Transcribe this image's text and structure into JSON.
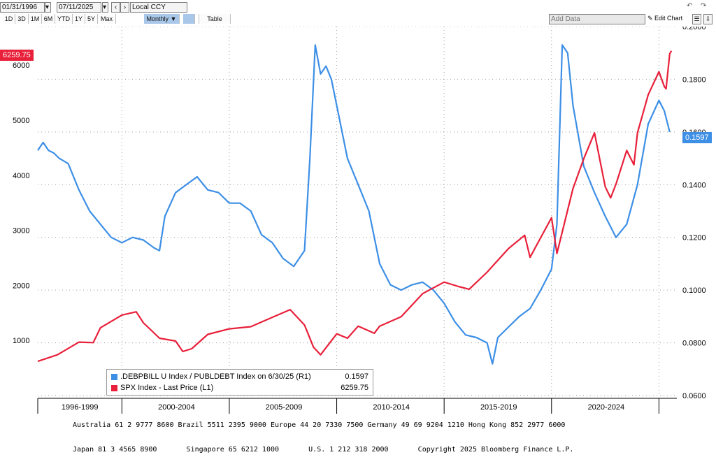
{
  "toolbar": {
    "start_date": "01/31/1996",
    "end_date": "07/11/2025",
    "currency": "Local CCY",
    "period_buttons": [
      "1D",
      "3D",
      "1M",
      "6M",
      "YTD",
      "1Y",
      "5Y",
      "Max"
    ],
    "frequency": "Monthly ▼",
    "table_label": "Table",
    "add_data_placeholder": "Add Data",
    "edit_chart_label": "Edit Chart"
  },
  "chart_data": {
    "type": "line",
    "x_start": "1996-01",
    "x_end": "2025-06",
    "x_period_labels": [
      "1996-1999",
      "2000-2004",
      "2005-2009",
      "2010-2014",
      "2015-2019",
      "2020-2024"
    ],
    "left_axis": {
      "ticks": [
        "1000",
        "2000",
        "3000",
        "4000",
        "5000",
        "6000"
      ],
      "range": [
        0,
        6700
      ]
    },
    "right_axis": {
      "ticks": [
        "0.0600",
        "0.0800",
        "0.1000",
        "0.1200",
        "0.1400",
        "0.1600",
        "0.1800",
        "0.2000"
      ],
      "range": [
        0.06,
        0.2
      ]
    },
    "series": [
      {
        "name": ".DEBPBILL U Index / PUBLDEBT Index on 6/30/25 (R1)",
        "last_value": "0.1597",
        "color": "#3d8fe6",
        "axis": "right",
        "points": [
          [
            "1996-01",
            0.153
          ],
          [
            "1996-04",
            0.156
          ],
          [
            "1996-07",
            0.153
          ],
          [
            "1996-10",
            0.152
          ],
          [
            "1997-01",
            0.15
          ],
          [
            "1997-06",
            0.148
          ],
          [
            "1997-12",
            0.138
          ],
          [
            "1998-06",
            0.13
          ],
          [
            "1998-12",
            0.125
          ],
          [
            "1999-06",
            0.12
          ],
          [
            "1999-12",
            0.118
          ],
          [
            "2000-06",
            0.12
          ],
          [
            "2000-12",
            0.119
          ],
          [
            "2001-06",
            0.116
          ],
          [
            "2001-09",
            0.115
          ],
          [
            "2001-12",
            0.128
          ],
          [
            "2002-06",
            0.137
          ],
          [
            "2002-12",
            0.14
          ],
          [
            "2003-06",
            0.143
          ],
          [
            "2003-12",
            0.138
          ],
          [
            "2004-06",
            0.137
          ],
          [
            "2004-12",
            0.133
          ],
          [
            "2005-06",
            0.133
          ],
          [
            "2005-12",
            0.13
          ],
          [
            "2006-06",
            0.121
          ],
          [
            "2006-12",
            0.118
          ],
          [
            "2007-06",
            0.112
          ],
          [
            "2007-12",
            0.109
          ],
          [
            "2008-06",
            0.115
          ],
          [
            "2008-09",
            0.15
          ],
          [
            "2008-12",
            0.193
          ],
          [
            "2009-03",
            0.182
          ],
          [
            "2009-06",
            0.185
          ],
          [
            "2009-09",
            0.18
          ],
          [
            "2009-12",
            0.17
          ],
          [
            "2010-06",
            0.15
          ],
          [
            "2010-12",
            0.14
          ],
          [
            "2011-06",
            0.13
          ],
          [
            "2011-12",
            0.11
          ],
          [
            "2012-06",
            0.102
          ],
          [
            "2012-12",
            0.1
          ],
          [
            "2013-06",
            0.102
          ],
          [
            "2013-12",
            0.103
          ],
          [
            "2014-06",
            0.1
          ],
          [
            "2014-12",
            0.095
          ],
          [
            "2015-06",
            0.088
          ],
          [
            "2015-12",
            0.083
          ],
          [
            "2016-06",
            0.082
          ],
          [
            "2016-12",
            0.08
          ],
          [
            "2017-03",
            0.072
          ],
          [
            "2017-06",
            0.082
          ],
          [
            "2017-12",
            0.086
          ],
          [
            "2018-06",
            0.09
          ],
          [
            "2018-12",
            0.093
          ],
          [
            "2019-06",
            0.1
          ],
          [
            "2019-12",
            0.108
          ],
          [
            "2020-03",
            0.125
          ],
          [
            "2020-06",
            0.193
          ],
          [
            "2020-09",
            0.19
          ],
          [
            "2020-12",
            0.17
          ],
          [
            "2021-06",
            0.147
          ],
          [
            "2021-12",
            0.137
          ],
          [
            "2022-06",
            0.128
          ],
          [
            "2022-12",
            0.12
          ],
          [
            "2023-06",
            0.125
          ],
          [
            "2023-12",
            0.14
          ],
          [
            "2024-06",
            0.163
          ],
          [
            "2024-12",
            0.172
          ],
          [
            "2025-03",
            0.168
          ],
          [
            "2025-06",
            0.16
          ]
        ]
      },
      {
        "name": "SPX Index - Last Price (L1)",
        "last_value": "6259.75",
        "color": "#e8203a",
        "axis": "left",
        "points": [
          [
            "1996-01",
            620
          ],
          [
            "1996-12",
            740
          ],
          [
            "1997-12",
            970
          ],
          [
            "1998-08",
            960
          ],
          [
            "1998-12",
            1230
          ],
          [
            "1999-12",
            1460
          ],
          [
            "2000-08",
            1520
          ],
          [
            "2000-12",
            1320
          ],
          [
            "2001-09",
            1040
          ],
          [
            "2002-06",
            990
          ],
          [
            "2002-10",
            800
          ],
          [
            "2003-03",
            850
          ],
          [
            "2003-12",
            1110
          ],
          [
            "2004-12",
            1210
          ],
          [
            "2005-12",
            1250
          ],
          [
            "2006-12",
            1420
          ],
          [
            "2007-10",
            1560
          ],
          [
            "2008-06",
            1280
          ],
          [
            "2008-11",
            880
          ],
          [
            "2009-03",
            740
          ],
          [
            "2009-12",
            1120
          ],
          [
            "2010-06",
            1040
          ],
          [
            "2010-12",
            1260
          ],
          [
            "2011-09",
            1130
          ],
          [
            "2011-12",
            1260
          ],
          [
            "2012-12",
            1430
          ],
          [
            "2013-12",
            1850
          ],
          [
            "2014-12",
            2060
          ],
          [
            "2015-08",
            1980
          ],
          [
            "2016-02",
            1930
          ],
          [
            "2016-12",
            2240
          ],
          [
            "2017-12",
            2670
          ],
          [
            "2018-09",
            2910
          ],
          [
            "2018-12",
            2510
          ],
          [
            "2019-12",
            3230
          ],
          [
            "2020-03",
            2580
          ],
          [
            "2020-12",
            3760
          ],
          [
            "2021-06",
            4300
          ],
          [
            "2021-12",
            4770
          ],
          [
            "2022-06",
            3790
          ],
          [
            "2022-09",
            3590
          ],
          [
            "2022-12",
            3840
          ],
          [
            "2023-06",
            4450
          ],
          [
            "2023-10",
            4190
          ],
          [
            "2023-12",
            4770
          ],
          [
            "2024-06",
            5460
          ],
          [
            "2024-12",
            5880
          ],
          [
            "2025-03",
            5610
          ],
          [
            "2025-04",
            5570
          ],
          [
            "2025-06",
            6205
          ],
          [
            "2025-07",
            6259.75
          ]
        ]
      }
    ],
    "left_badge": "6259.75",
    "right_badge": "0.1597"
  },
  "footer": {
    "line1": "Australia 61 2 9777 8600 Brazil 5511 2395 9000 Europe 44 20 7330 7500 Germany 49 69 9204 1210 Hong Kong 852 2977 6000",
    "line2": "Japan 81 3 4565 8900       Singapore 65 6212 1000       U.S. 1 212 318 2000       Copyright 2025 Bloomberg Finance L.P."
  }
}
